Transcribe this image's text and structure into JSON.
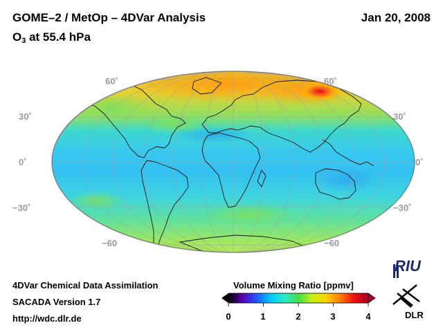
{
  "header": {
    "title": "GOME–2 / MetOp – 4DVar Analysis",
    "subtitle_prefix": "O",
    "subtitle_sub": "3",
    "subtitle_suffix": " at 55.4 hPa",
    "date": "Jan 20, 2008"
  },
  "map": {
    "projection": "Hammer/Mollweide equal-area",
    "latitude_labels_left": [
      "60˚",
      "30˚",
      "0˚",
      "−30˚",
      "−60"
    ],
    "latitude_labels_right": [
      "60˚",
      "30˚",
      "0˚",
      "−30˚",
      "−60"
    ],
    "field": "ozone volume mixing ratio"
  },
  "colorbar": {
    "title": "Volume Mixing Ratio [ppmv]",
    "ticks": [
      "0",
      "1",
      "2",
      "3",
      "4"
    ],
    "colors": [
      "#000000",
      "#5b00b3",
      "#2255ff",
      "#00c8ff",
      "#2ee8c8",
      "#46e04a",
      "#c8ef14",
      "#ffd000",
      "#ff7a00",
      "#ee1010",
      "#a0002a"
    ]
  },
  "footer": {
    "line1": "4DVar Chemical Data Assimilation",
    "line2": "SACADA Version 1.7",
    "line3": "http://wdc.dlr.de"
  },
  "logos": {
    "riu": "RIU",
    "dlr": "DLR"
  }
}
